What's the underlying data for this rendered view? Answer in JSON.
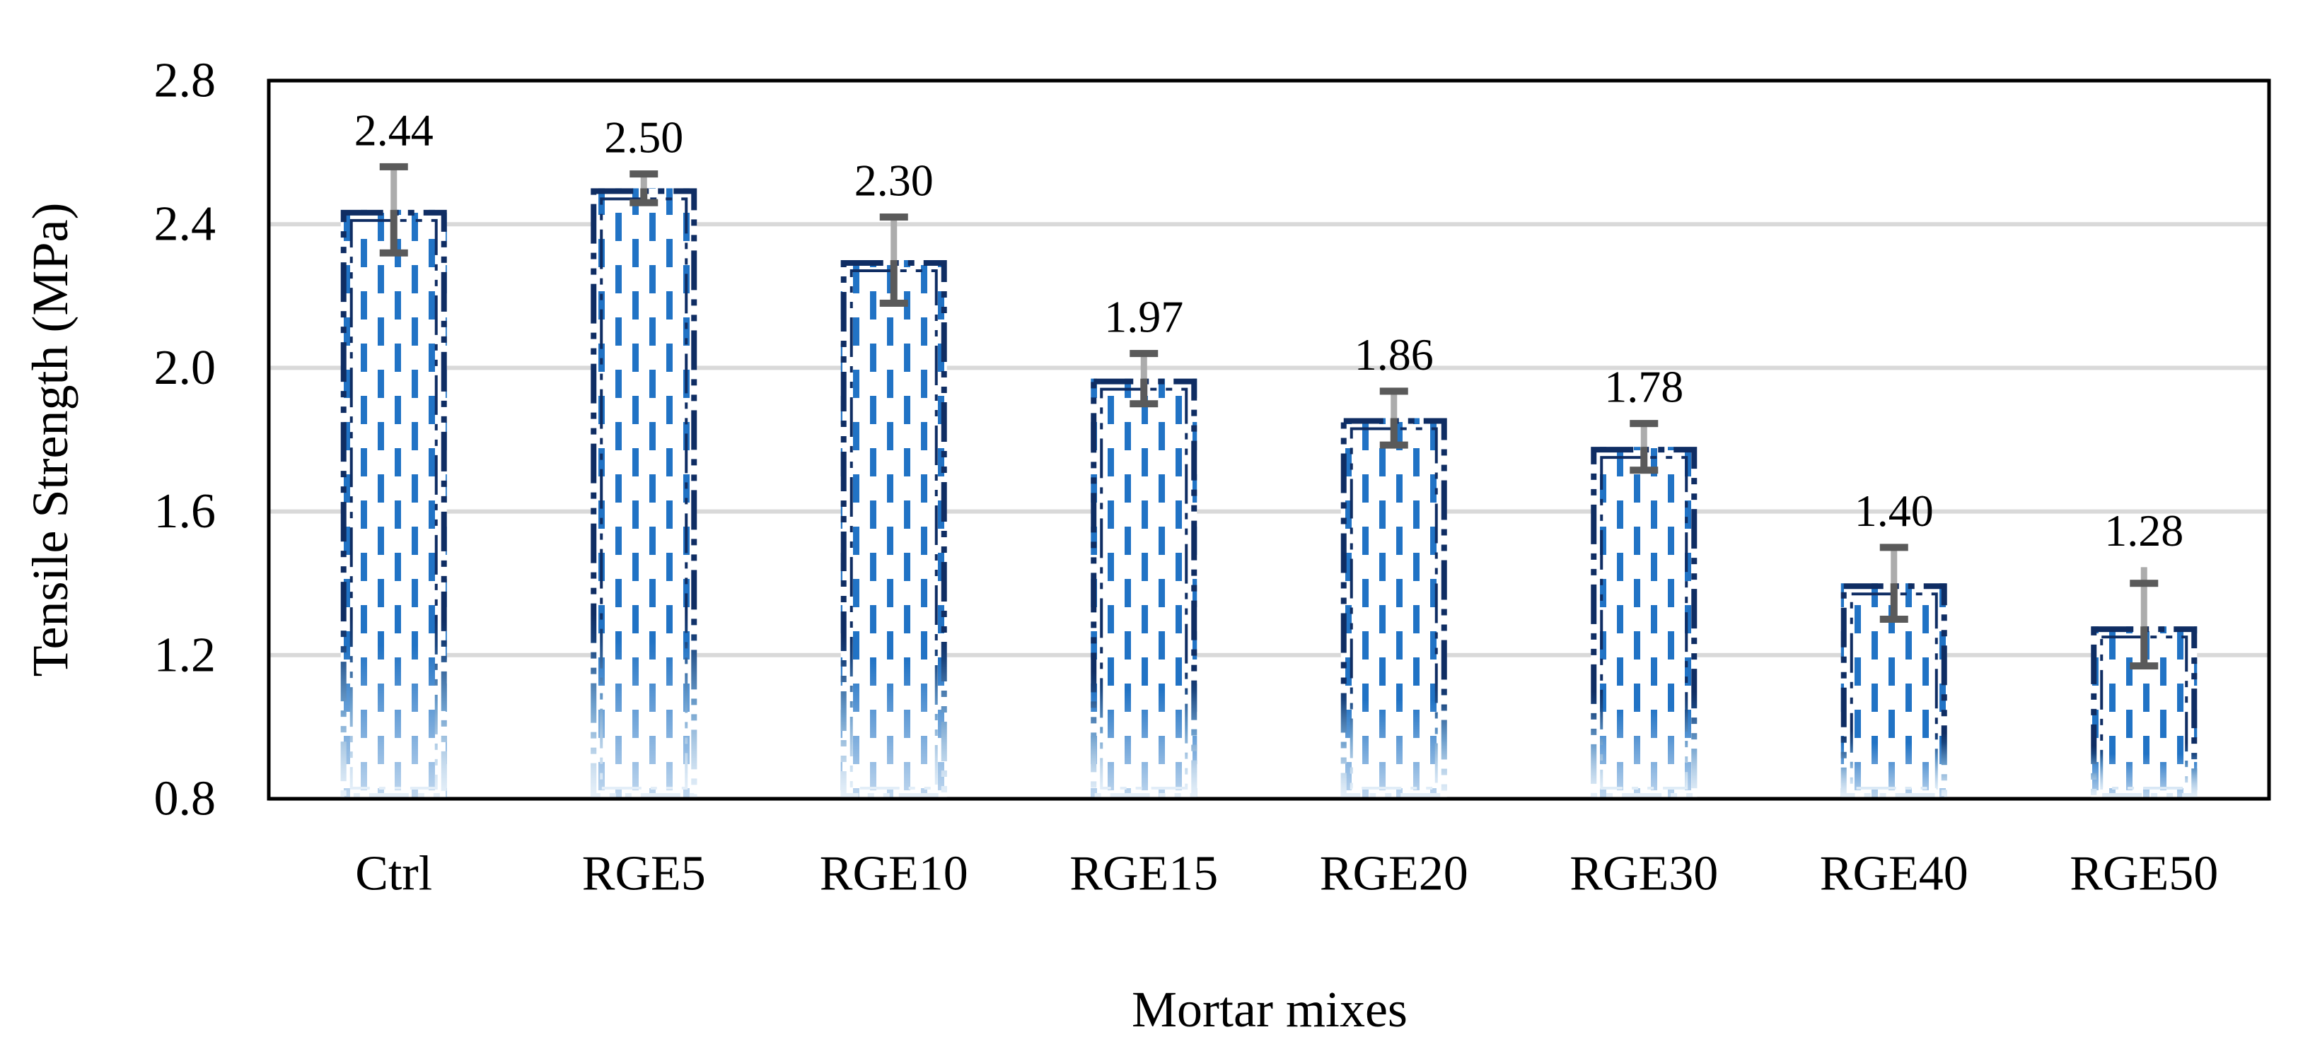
{
  "chart_data": {
    "type": "bar",
    "title": "",
    "xlabel": "Mortar mixes",
    "ylabel": "Tensile Strength (MPa)",
    "categories": [
      "Ctrl",
      "RGE5",
      "RGE10",
      "RGE15",
      "RGE20",
      "RGE30",
      "RGE40",
      "RGE50"
    ],
    "values": [
      2.44,
      2.5,
      2.3,
      1.97,
      1.86,
      1.78,
      1.4,
      1.28
    ],
    "data_labels": [
      "2.44",
      "2.50",
      "2.30",
      "1.97",
      "1.86",
      "1.78",
      "1.40",
      "1.28"
    ],
    "error_up": [
      0.12,
      0.04,
      0.12,
      0.07,
      0.075,
      0.065,
      0.1,
      0.12
    ],
    "error_down": [
      0.12,
      0.04,
      0.12,
      0.07,
      0.075,
      0.065,
      0.1,
      0.11
    ],
    "error_light_ext": [
      0,
      0,
      0,
      0,
      0,
      0,
      0,
      0.045
    ],
    "ylim": [
      0.8,
      2.8
    ],
    "yticks": [
      0.8,
      1.2,
      1.6,
      2.0,
      2.4,
      2.8
    ],
    "ytick_labels": [
      "0.8",
      "1.2",
      "1.6",
      "2.0",
      "2.4",
      "2.8"
    ],
    "grid": true,
    "legend": "none",
    "bar_fill_style": "vertical-dash-pattern",
    "bar_border_style": "long-dash-dot-dot-double",
    "colors": {
      "bar_dash": "#2173C5",
      "border_top": "#0F2D63",
      "border_mid": "#2E75B6",
      "border_bottom": "#AACCEA",
      "gridline": "#D9D9D9",
      "frame": "#000000",
      "error_dark": "#5A5A5A",
      "error_light": "#ACACAC",
      "text": "#000000",
      "background": "#FFFFFF"
    }
  }
}
